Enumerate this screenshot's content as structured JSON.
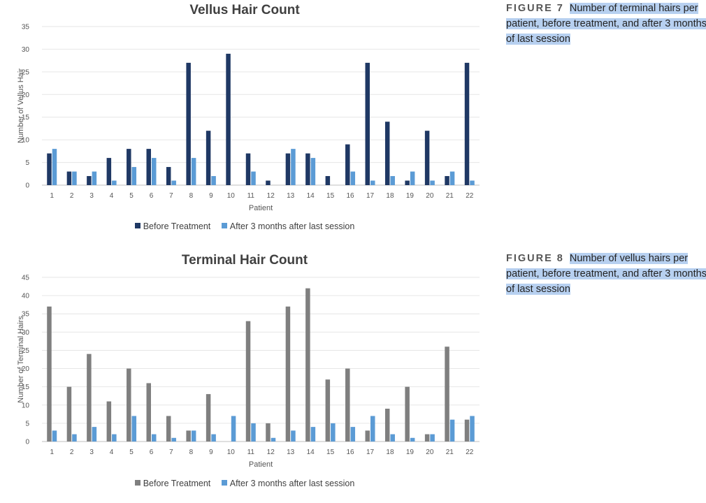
{
  "figures": [
    {
      "label": "FIGURE 7",
      "caption": "Number of terminal hairs per patient, before treatment, and after 3 months of last session"
    },
    {
      "label": "FIGURE 8",
      "caption": "Number of vellus hairs per patient, before treatment, and after 3 months of last session"
    }
  ],
  "chart_data": [
    {
      "type": "bar",
      "title": "Vellus Hair Count",
      "xlabel": "Patient",
      "ylabel": "Number of Vellus Hair",
      "ylim": [
        0,
        35
      ],
      "yticks": [
        0,
        5,
        10,
        15,
        20,
        25,
        30,
        35
      ],
      "grid": true,
      "legend_position": "bottom",
      "categories": [
        "1",
        "2",
        "3",
        "4",
        "5",
        "6",
        "7",
        "8",
        "9",
        "10",
        "11",
        "12",
        "13",
        "14",
        "15",
        "16",
        "17",
        "18",
        "19",
        "20",
        "21",
        "22"
      ],
      "series": [
        {
          "name": "Before Treatment",
          "color": "#1f3864",
          "values": [
            7,
            3,
            2,
            6,
            8,
            8,
            4,
            27,
            12,
            29,
            7,
            1,
            7,
            7,
            2,
            9,
            27,
            14,
            1,
            12,
            2,
            27
          ]
        },
        {
          "name": "After 3 months after last session",
          "color": "#5b9bd5",
          "values": [
            8,
            3,
            3,
            1,
            4,
            6,
            1,
            6,
            2,
            0,
            3,
            0,
            8,
            6,
            0,
            3,
            1,
            2,
            3,
            1,
            3,
            1
          ]
        }
      ]
    },
    {
      "type": "bar",
      "title": "Terminal Hair Count",
      "xlabel": "Patient",
      "ylabel": "Number of Terminal Hairs",
      "ylim": [
        0,
        45
      ],
      "yticks": [
        0,
        5,
        10,
        15,
        20,
        25,
        30,
        35,
        40,
        45
      ],
      "grid": true,
      "legend_position": "bottom",
      "categories": [
        "1",
        "2",
        "3",
        "4",
        "5",
        "6",
        "7",
        "8",
        "9",
        "10",
        "11",
        "12",
        "13",
        "14",
        "15",
        "16",
        "17",
        "18",
        "19",
        "20",
        "21",
        "22"
      ],
      "series": [
        {
          "name": "Before Treatment",
          "color": "#7f7f7f",
          "values": [
            37,
            15,
            24,
            11,
            20,
            16,
            7,
            3,
            13,
            0,
            33,
            5,
            37,
            42,
            17,
            20,
            3,
            9,
            15,
            2,
            26,
            6
          ]
        },
        {
          "name": "After 3 months after last session",
          "color": "#5b9bd5",
          "values": [
            3,
            2,
            4,
            2,
            7,
            2,
            1,
            3,
            2,
            7,
            5,
            1,
            3,
            4,
            5,
            4,
            7,
            2,
            1,
            2,
            6,
            7
          ]
        }
      ]
    }
  ]
}
